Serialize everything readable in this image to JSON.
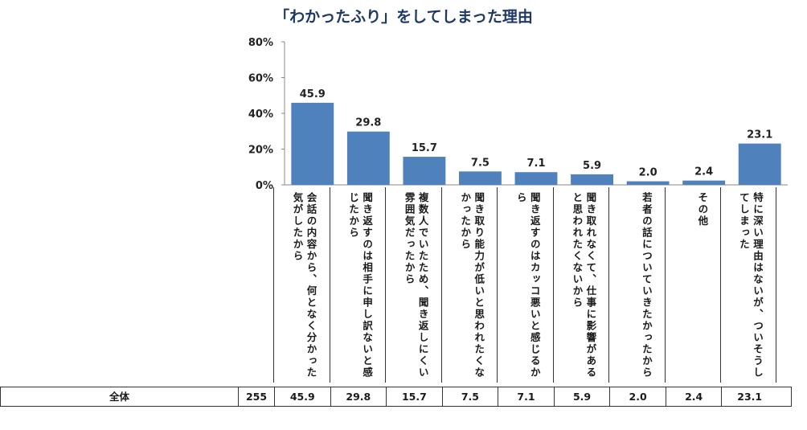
{
  "title": "「わかったふり」をしてしまった理由",
  "chart_data": {
    "type": "bar",
    "title": "「わかったふり」をしてしまった理由",
    "categories": [
      "会話の内容から、何となく分かった気がしたから",
      "聞き返すのは相手に申し訳ないと感じたから",
      "複数人でいたため、聞き返しにくい雰囲気だったから",
      "聞き取り能力が低いと思われたくなかったから",
      "聞き返すのはカッコ悪いと感じるから",
      "聞き取れなくて、仕事に影響があると思われたくないから",
      "若者の話についていきたかったから",
      "その他",
      "特に深い理由はないが、ついそうしてしまった"
    ],
    "values": [
      45.9,
      29.8,
      15.7,
      7.5,
      7.1,
      5.9,
      2.0,
      2.4,
      23.1
    ],
    "value_labels": [
      "45.9",
      "29.8",
      "15.7",
      "7.5",
      "7.1",
      "5.9",
      "2.0",
      "2.4",
      "23.1"
    ],
    "ylim": [
      0,
      80
    ],
    "yticks": [
      "0%",
      "20%",
      "40%",
      "60%",
      "80%"
    ],
    "bar_color": "#4f81bd",
    "grid": false,
    "table": {
      "row_label": "全体",
      "n": "255",
      "values": [
        "45.9",
        "29.8",
        "15.7",
        "7.5",
        "7.1",
        "5.9",
        "2.0",
        "2.4",
        "23.1"
      ]
    }
  }
}
